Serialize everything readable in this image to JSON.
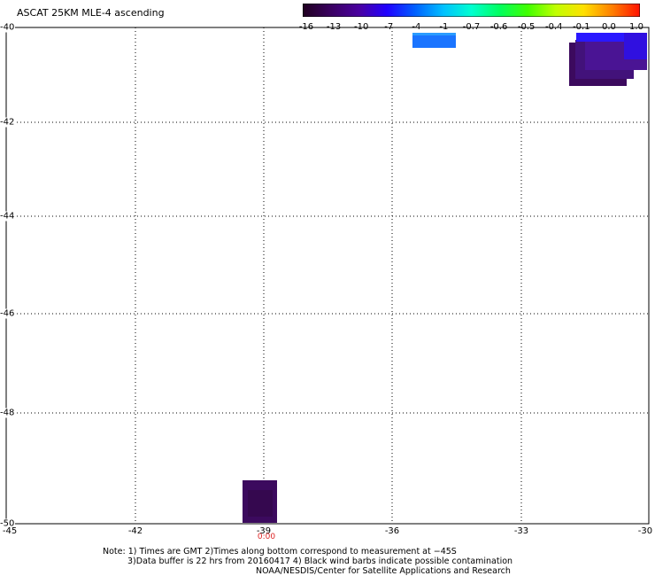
{
  "title": "ASCAT 25KM MLE-4 ascending",
  "colorbar": {
    "labels": [
      "-16",
      "-13",
      "-10",
      "-7",
      "-4",
      "-1",
      "-0.7",
      "-0.6",
      "-0.5",
      "-0.4",
      "-0.1",
      "0.0",
      "1.0"
    ],
    "colors": [
      "#200020",
      "#3a0060",
      "#4a00a0",
      "#2000ff",
      "#0060ff",
      "#00c0ff",
      "#00ffd0",
      "#00ff60",
      "#40ff00",
      "#c0ff00",
      "#ffe000",
      "#ff8000",
      "#ff1000"
    ]
  },
  "map": {
    "lat_labels": [
      "-40",
      "-42",
      "-44",
      "-46",
      "-48",
      "-50"
    ],
    "lon_labels": [
      "-45",
      "-42",
      "-39",
      "-36",
      "-33",
      "-30"
    ],
    "time_label": "0:00"
  },
  "notes": {
    "line1": "Note: 1) Times are GMT 2)Times along bottom correspond to measurement at −45S",
    "line2": "3)Data buffer is 22 hrs from 20160417 4) Black wind barbs indicate possible contamination",
    "line3": "NOAA/NESDIS/Center for Satellite Applications and Research"
  }
}
